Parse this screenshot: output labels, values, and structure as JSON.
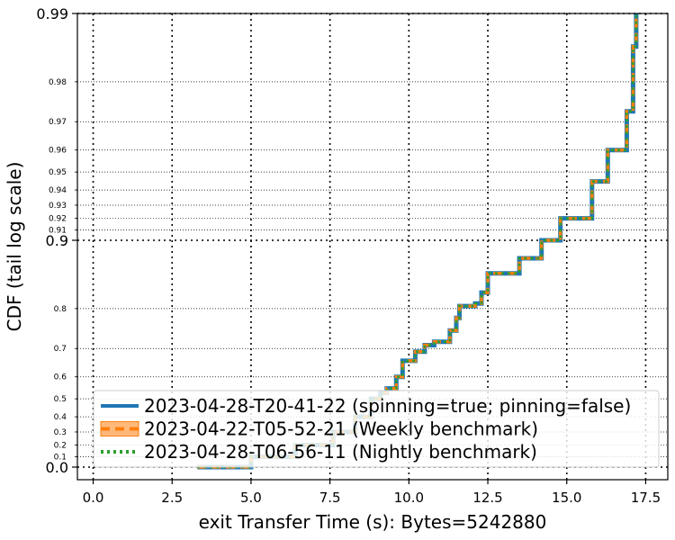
{
  "chart_data": {
    "type": "line",
    "title": "",
    "xlabel": "exit Transfer Time (s): Bytes=5242880",
    "ylabel": "CDF (tail log scale)",
    "xlim": [
      -0.5,
      18.2
    ],
    "x_ticks": [
      "0.0",
      "2.5",
      "5.0",
      "7.5",
      "10.0",
      "12.5",
      "15.0",
      "17.5"
    ],
    "y_ticks_major": [
      "0.0",
      "0.9",
      "0.99"
    ],
    "y_ticks_minor": [
      "0.1",
      "0.2",
      "0.3",
      "0.4",
      "0.5",
      "0.6",
      "0.7",
      "0.8",
      "0.91",
      "0.92",
      "0.93",
      "0.94",
      "0.95",
      "0.96",
      "0.97",
      "0.98"
    ],
    "y_scale": "tail log",
    "grid": true,
    "legend_position": "lower right",
    "series": [
      {
        "name": "2023-04-28-T20-41-22 (spinning=true; pinning=false)",
        "color": "#1f77b4",
        "style": "solid",
        "x": [
          3.3,
          5.0,
          6.4,
          7.6,
          8.3,
          8.8,
          9.1,
          9.3,
          9.6,
          9.8,
          10.2,
          10.5,
          10.8,
          11.3,
          11.5,
          11.6,
          12.1,
          12.3,
          12.5,
          13.5,
          14.2,
          14.8,
          15.8,
          16.3,
          16.9,
          17.1,
          17.2
        ],
        "y": [
          0.0,
          0.1,
          0.2,
          0.3,
          0.4,
          0.5,
          0.53,
          0.55,
          0.6,
          0.66,
          0.69,
          0.71,
          0.72,
          0.75,
          0.78,
          0.805,
          0.81,
          0.83,
          0.86,
          0.88,
          0.9,
          0.92,
          0.945,
          0.96,
          0.973,
          0.986,
          0.99
        ]
      },
      {
        "name": "2023-04-22-T05-52-21 (Weekly benchmark)",
        "color": "#ff7f0e",
        "style": "dashed",
        "x": [
          3.3,
          5.0,
          6.4,
          7.6,
          8.3,
          8.8,
          9.1,
          9.3,
          9.6,
          9.8,
          10.2,
          10.5,
          10.8,
          11.3,
          11.5,
          11.6,
          12.1,
          12.3,
          12.5,
          13.5,
          14.2,
          14.8,
          15.8,
          16.3,
          16.9,
          17.1,
          17.2
        ],
        "y": [
          0.0,
          0.1,
          0.2,
          0.3,
          0.4,
          0.5,
          0.53,
          0.55,
          0.6,
          0.66,
          0.69,
          0.71,
          0.72,
          0.75,
          0.78,
          0.805,
          0.81,
          0.83,
          0.86,
          0.88,
          0.9,
          0.92,
          0.945,
          0.96,
          0.973,
          0.986,
          0.99
        ]
      },
      {
        "name": "2023-04-28-T06-56-11 (Nightly benchmark)",
        "color": "#2ca02c",
        "style": "dotted",
        "x": [
          3.3,
          5.0,
          6.4,
          7.6,
          8.3,
          8.8,
          9.1,
          9.3,
          9.6,
          9.8,
          10.2,
          10.5,
          10.8,
          11.3,
          11.5,
          11.6,
          12.1,
          12.3,
          12.5,
          13.5,
          14.2,
          14.8,
          15.8,
          16.3,
          16.9,
          17.1,
          17.2
        ],
        "y": [
          0.0,
          0.1,
          0.2,
          0.3,
          0.4,
          0.5,
          0.53,
          0.55,
          0.6,
          0.66,
          0.69,
          0.71,
          0.72,
          0.75,
          0.78,
          0.805,
          0.81,
          0.83,
          0.86,
          0.88,
          0.9,
          0.92,
          0.945,
          0.96,
          0.973,
          0.986,
          0.99
        ]
      }
    ]
  }
}
